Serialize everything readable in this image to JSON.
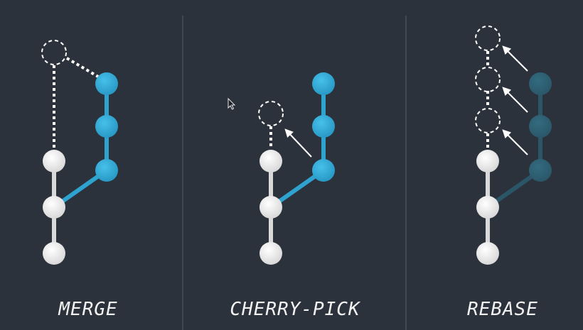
{
  "background_color": "#2c323b",
  "colors": {
    "main_branch": "#d9d9d9",
    "commit_white": "#f2f2f2",
    "feature_branch": "#2fa3cf",
    "feature_commit": "#36b1dd",
    "feature_faded": "#2c5e72",
    "ghost": "#ffffff",
    "divider": "#4a5059"
  },
  "panels": [
    {
      "id": "merge",
      "label": "MERGE"
    },
    {
      "id": "cherry-pick",
      "label": "CHERRY-PICK"
    },
    {
      "id": "rebase",
      "label": "REBASE"
    }
  ],
  "icons": [
    "mouse-cursor-icon",
    "arrow-icon"
  ]
}
